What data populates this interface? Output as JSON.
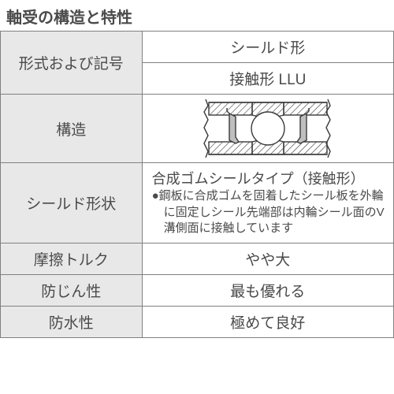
{
  "title": "軸受の構造と特性",
  "title_fontsize": 20,
  "table": {
    "border_color": "#808080",
    "header_bg": "#e8e8e8",
    "cell_bg": "#ffffff",
    "text_color": "#4a4a4a",
    "col_widths_pct": [
      36,
      64
    ],
    "rows": {
      "format": {
        "label": "形式および記号",
        "line1": "シールド形",
        "line2": "接触形 LLU",
        "fontsize": 19
      },
      "structure": {
        "label": "構造",
        "fontsize": 19
      },
      "shield_shape": {
        "label": "シールド形状",
        "main": "合成ゴムシールタイプ（接触形）",
        "sub": "●鋼板に合成ゴムを固着したシール板を外輪に固定しシール先端部は内輪シール面のV溝側面に接触しています",
        "main_fontsize": 18,
        "sub_fontsize": 15
      },
      "friction": {
        "label": "摩擦トルク",
        "value": "やや大",
        "fontsize": 19
      },
      "dust": {
        "label": "防じん性",
        "value": "最も優れる",
        "fontsize": 19
      },
      "water": {
        "label": "防水性",
        "value": "極めて良好",
        "fontsize": 19
      }
    }
  },
  "diagram": {
    "width": 190,
    "height": 78,
    "bg": "#ffffff",
    "stroke": "#3a3a3a",
    "stroke_width": 1.4,
    "hatch_color": "#3a3a3a",
    "ball_fill": "#ffffff",
    "seal_fill": "#bfbfbf"
  }
}
